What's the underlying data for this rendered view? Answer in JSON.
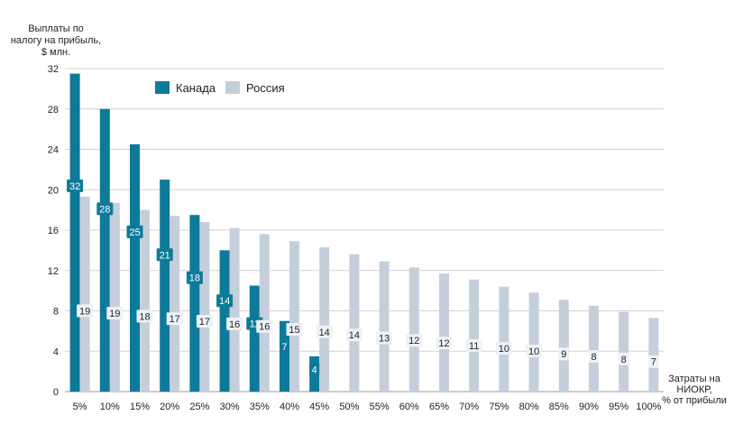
{
  "chart_data": {
    "type": "bar",
    "ylabel_lines": [
      "Выплаты по",
      "налогу на прибыль,",
      "$ млн."
    ],
    "xlabel_lines": [
      "Затраты на",
      "НИОКР,",
      "% от прибыли"
    ],
    "categories": [
      "5%",
      "10%",
      "15%",
      "20%",
      "25%",
      "30%",
      "35%",
      "40%",
      "45%",
      "50%",
      "55%",
      "60%",
      "65%",
      "70%",
      "75%",
      "80%",
      "85%",
      "90%",
      "95%",
      "100%"
    ],
    "ylim": [
      0,
      32
    ],
    "yticks": [
      0,
      4,
      8,
      12,
      16,
      20,
      24,
      28,
      32
    ],
    "grid": true,
    "legend_position": "top-left",
    "series": [
      {
        "name": "Канада",
        "color": "#0d7a9a",
        "values": [
          31.5,
          28,
          24.5,
          21,
          17.5,
          14,
          10.5,
          7,
          3.5,
          null,
          null,
          null,
          null,
          null,
          null,
          null,
          null,
          null,
          null,
          null
        ],
        "labels": [
          "32",
          "28",
          "25",
          "21",
          "18",
          "14",
          "11",
          "7",
          "4",
          "",
          "",
          "",
          "",
          "",
          "",
          "",
          "",
          "",
          "",
          ""
        ]
      },
      {
        "name": "Россия",
        "color": "#c5cfdc",
        "values": [
          19.3,
          18.7,
          18,
          17.4,
          16.8,
          16.2,
          15.6,
          14.9,
          14.3,
          13.6,
          12.9,
          12.3,
          11.7,
          11.1,
          10.4,
          9.8,
          9.1,
          8.5,
          7.9,
          7.3
        ],
        "labels": [
          "19",
          "19",
          "18",
          "17",
          "17",
          "16",
          "16",
          "15",
          "14",
          "14",
          "13",
          "12",
          "12",
          "11",
          "10",
          "10",
          "9",
          "8",
          "8",
          "7"
        ]
      }
    ]
  }
}
